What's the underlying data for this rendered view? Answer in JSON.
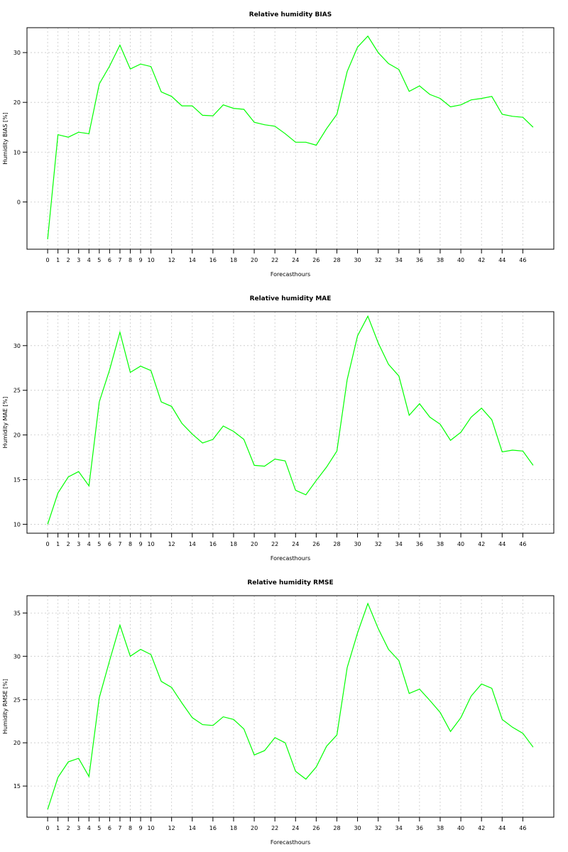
{
  "chart_data": [
    {
      "type": "line",
      "title": "Relative humidity BIAS",
      "xlabel": "Forecasthours",
      "ylabel": "Humidity BIAS [%]",
      "x_tick_labels": [
        "0",
        "1",
        "2",
        "3",
        "4",
        "5",
        "6",
        "7",
        "8",
        "9",
        "10",
        "12",
        "14",
        "16",
        "18",
        "20",
        "22",
        "24",
        "26",
        "28",
        "30",
        "32",
        "34",
        "36",
        "38",
        "40",
        "42",
        "44",
        "46"
      ],
      "y_ticks": [
        0,
        10,
        20,
        30
      ],
      "ylim": [
        -9.5,
        35
      ],
      "xlim": [
        -2,
        49
      ],
      "grid": true,
      "color": "#00ff00",
      "x": [
        0,
        1,
        2,
        3,
        4,
        5,
        6,
        7,
        8,
        9,
        10,
        11,
        12,
        13,
        14,
        15,
        16,
        17,
        18,
        19,
        20,
        21,
        22,
        23,
        24,
        25,
        26,
        27,
        28,
        29,
        30,
        31,
        32,
        33,
        34,
        35,
        36,
        37,
        38,
        39,
        40,
        41,
        42,
        43,
        44,
        45,
        46,
        47
      ],
      "values": [
        -7.5,
        13.5,
        13.0,
        14.0,
        13.7,
        23.7,
        27.3,
        31.5,
        26.7,
        27.7,
        27.2,
        22.1,
        21.2,
        19.3,
        19.3,
        17.4,
        17.3,
        19.5,
        18.8,
        18.6,
        16.0,
        15.5,
        15.2,
        13.7,
        12.0,
        12.0,
        11.4,
        14.7,
        17.6,
        26.2,
        31.1,
        33.3,
        30.0,
        27.8,
        26.6,
        22.2,
        23.3,
        21.6,
        20.8,
        19.1,
        19.5,
        20.5,
        20.8,
        21.2,
        17.6,
        17.2,
        17.0,
        15.0
      ]
    },
    {
      "type": "line",
      "title": "Relative humidity MAE",
      "xlabel": "Forecasthours",
      "ylabel": "Humidity MAE [%]",
      "x_tick_labels": [
        "0",
        "1",
        "2",
        "3",
        "4",
        "5",
        "6",
        "7",
        "8",
        "9",
        "10",
        "12",
        "14",
        "16",
        "18",
        "20",
        "22",
        "24",
        "26",
        "28",
        "30",
        "32",
        "34",
        "36",
        "38",
        "40",
        "42",
        "44",
        "46"
      ],
      "y_ticks": [
        10,
        15,
        20,
        25,
        30
      ],
      "ylim": [
        9,
        33.8
      ],
      "xlim": [
        -2,
        49
      ],
      "grid": true,
      "color": "#00ff00",
      "x": [
        0,
        1,
        2,
        3,
        4,
        5,
        6,
        7,
        8,
        9,
        10,
        11,
        12,
        13,
        14,
        15,
        16,
        17,
        18,
        19,
        20,
        21,
        22,
        23,
        24,
        25,
        26,
        27,
        28,
        29,
        30,
        31,
        32,
        33,
        34,
        35,
        36,
        37,
        38,
        39,
        40,
        41,
        42,
        43,
        44,
        45,
        46,
        47
      ],
      "values": [
        10.0,
        13.5,
        15.3,
        15.9,
        14.3,
        23.7,
        27.3,
        31.5,
        27.0,
        27.7,
        27.2,
        23.7,
        23.2,
        21.3,
        20.1,
        19.1,
        19.5,
        21.0,
        20.4,
        19.5,
        16.6,
        16.5,
        17.3,
        17.1,
        13.8,
        13.3,
        14.9,
        16.4,
        18.2,
        26.2,
        31.1,
        33.3,
        30.3,
        27.9,
        26.6,
        22.2,
        23.5,
        22.0,
        21.2,
        19.4,
        20.3,
        22.0,
        23.0,
        21.7,
        18.1,
        18.3,
        18.2,
        16.6
      ]
    },
    {
      "type": "line",
      "title": "Relative humidity RMSE",
      "xlabel": "Forecasthours",
      "ylabel": "Humidity RMSE [%]",
      "x_tick_labels": [
        "0",
        "1",
        "2",
        "3",
        "4",
        "5",
        "6",
        "7",
        "8",
        "9",
        "10",
        "12",
        "14",
        "16",
        "18",
        "20",
        "22",
        "24",
        "26",
        "28",
        "30",
        "32",
        "34",
        "36",
        "38",
        "40",
        "42",
        "44",
        "46"
      ],
      "y_ticks": [
        15,
        20,
        25,
        30,
        35
      ],
      "ylim": [
        11.4,
        37
      ],
      "xlim": [
        -2,
        49
      ],
      "grid": true,
      "color": "#00ff00",
      "x": [
        0,
        1,
        2,
        3,
        4,
        5,
        6,
        7,
        8,
        9,
        10,
        11,
        12,
        13,
        14,
        15,
        16,
        17,
        18,
        19,
        20,
        21,
        22,
        23,
        24,
        25,
        26,
        27,
        28,
        29,
        30,
        31,
        32,
        33,
        34,
        35,
        36,
        37,
        38,
        39,
        40,
        41,
        42,
        43,
        44,
        45,
        46,
        47
      ],
      "values": [
        12.3,
        16.0,
        17.8,
        18.2,
        16.1,
        25.2,
        29.5,
        33.6,
        30.0,
        30.8,
        30.2,
        27.1,
        26.4,
        24.6,
        22.9,
        22.1,
        22.0,
        23.0,
        22.7,
        21.6,
        18.6,
        19.1,
        20.6,
        20.0,
        16.7,
        15.8,
        17.2,
        19.6,
        20.9,
        28.7,
        32.7,
        36.1,
        33.2,
        30.8,
        29.5,
        25.7,
        26.2,
        24.9,
        23.5,
        21.3,
        22.9,
        25.4,
        26.8,
        26.3,
        22.7,
        21.8,
        21.1,
        19.5
      ]
    }
  ]
}
